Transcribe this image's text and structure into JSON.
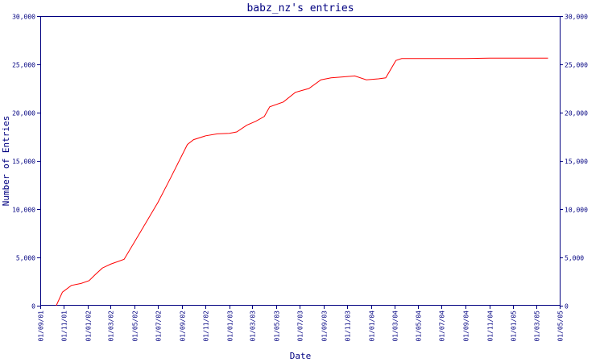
{
  "chart_data": {
    "type": "line",
    "title": "babz_nz's entries",
    "xlabel": "Date",
    "ylabel": "Number of Entries",
    "ylim": [
      0,
      30000
    ],
    "yticks": [
      0,
      5000,
      10000,
      15000,
      20000,
      25000,
      30000
    ],
    "ytick_labels": [
      "0",
      "5,000",
      "10,000",
      "15,000",
      "20,000",
      "25,000",
      "30,000"
    ],
    "xlim": [
      "2001-09-01",
      "2005-05-01"
    ],
    "xticks": [
      "2001-09-01",
      "2001-11-01",
      "2002-01-01",
      "2002-03-01",
      "2002-05-01",
      "2002-07-01",
      "2002-09-01",
      "2002-11-01",
      "2003-01-01",
      "2003-03-01",
      "2003-05-01",
      "2003-07-01",
      "2003-09-01",
      "2003-11-01",
      "2004-01-01",
      "2004-03-01",
      "2004-05-01",
      "2004-07-01",
      "2004-09-01",
      "2004-11-01",
      "2005-01-01",
      "2005-03-01",
      "2005-05-01"
    ],
    "xtick_labels": [
      "01/09/01",
      "01/11/01",
      "01/01/02",
      "01/03/02",
      "01/05/02",
      "01/07/02",
      "01/09/02",
      "01/11/02",
      "01/01/03",
      "01/03/03",
      "01/05/03",
      "01/07/03",
      "01/09/03",
      "01/11/03",
      "01/01/04",
      "01/03/04",
      "01/05/04",
      "01/07/04",
      "01/09/04",
      "01/11/04",
      "01/01/05",
      "01/03/05",
      "01/05/05"
    ],
    "grid": false,
    "series": [
      {
        "color": "#ff0000",
        "points": [
          [
            "2001-10-12",
            0
          ],
          [
            "2001-10-28",
            1400
          ],
          [
            "2001-11-20",
            2100
          ],
          [
            "2001-12-15",
            2300
          ],
          [
            "2002-01-05",
            2600
          ],
          [
            "2002-01-20",
            3200
          ],
          [
            "2002-02-08",
            3900
          ],
          [
            "2002-03-01",
            4300
          ],
          [
            "2002-04-05",
            4800
          ],
          [
            "2002-05-15",
            7500
          ],
          [
            "2002-07-01",
            10700
          ],
          [
            "2002-08-01",
            13100
          ],
          [
            "2002-09-15",
            16700
          ],
          [
            "2002-10-01",
            17200
          ],
          [
            "2002-11-01",
            17600
          ],
          [
            "2002-12-01",
            17800
          ],
          [
            "2003-01-01",
            17850
          ],
          [
            "2003-01-20",
            18000
          ],
          [
            "2003-02-15",
            18700
          ],
          [
            "2003-03-10",
            19100
          ],
          [
            "2003-04-01",
            19600
          ],
          [
            "2003-04-15",
            20600
          ],
          [
            "2003-05-20",
            21100
          ],
          [
            "2003-06-20",
            22100
          ],
          [
            "2003-07-25",
            22500
          ],
          [
            "2003-08-25",
            23400
          ],
          [
            "2003-09-20",
            23600
          ],
          [
            "2003-10-20",
            23700
          ],
          [
            "2003-11-20",
            23800
          ],
          [
            "2003-12-20",
            23400
          ],
          [
            "2004-01-20",
            23500
          ],
          [
            "2004-02-08",
            23600
          ],
          [
            "2004-03-05",
            25400
          ],
          [
            "2004-03-20",
            25600
          ],
          [
            "2004-05-01",
            25600
          ],
          [
            "2004-09-01",
            25600
          ],
          [
            "2004-11-01",
            25650
          ],
          [
            "2005-02-01",
            25650
          ],
          [
            "2005-04-01",
            25650
          ]
        ]
      }
    ]
  }
}
